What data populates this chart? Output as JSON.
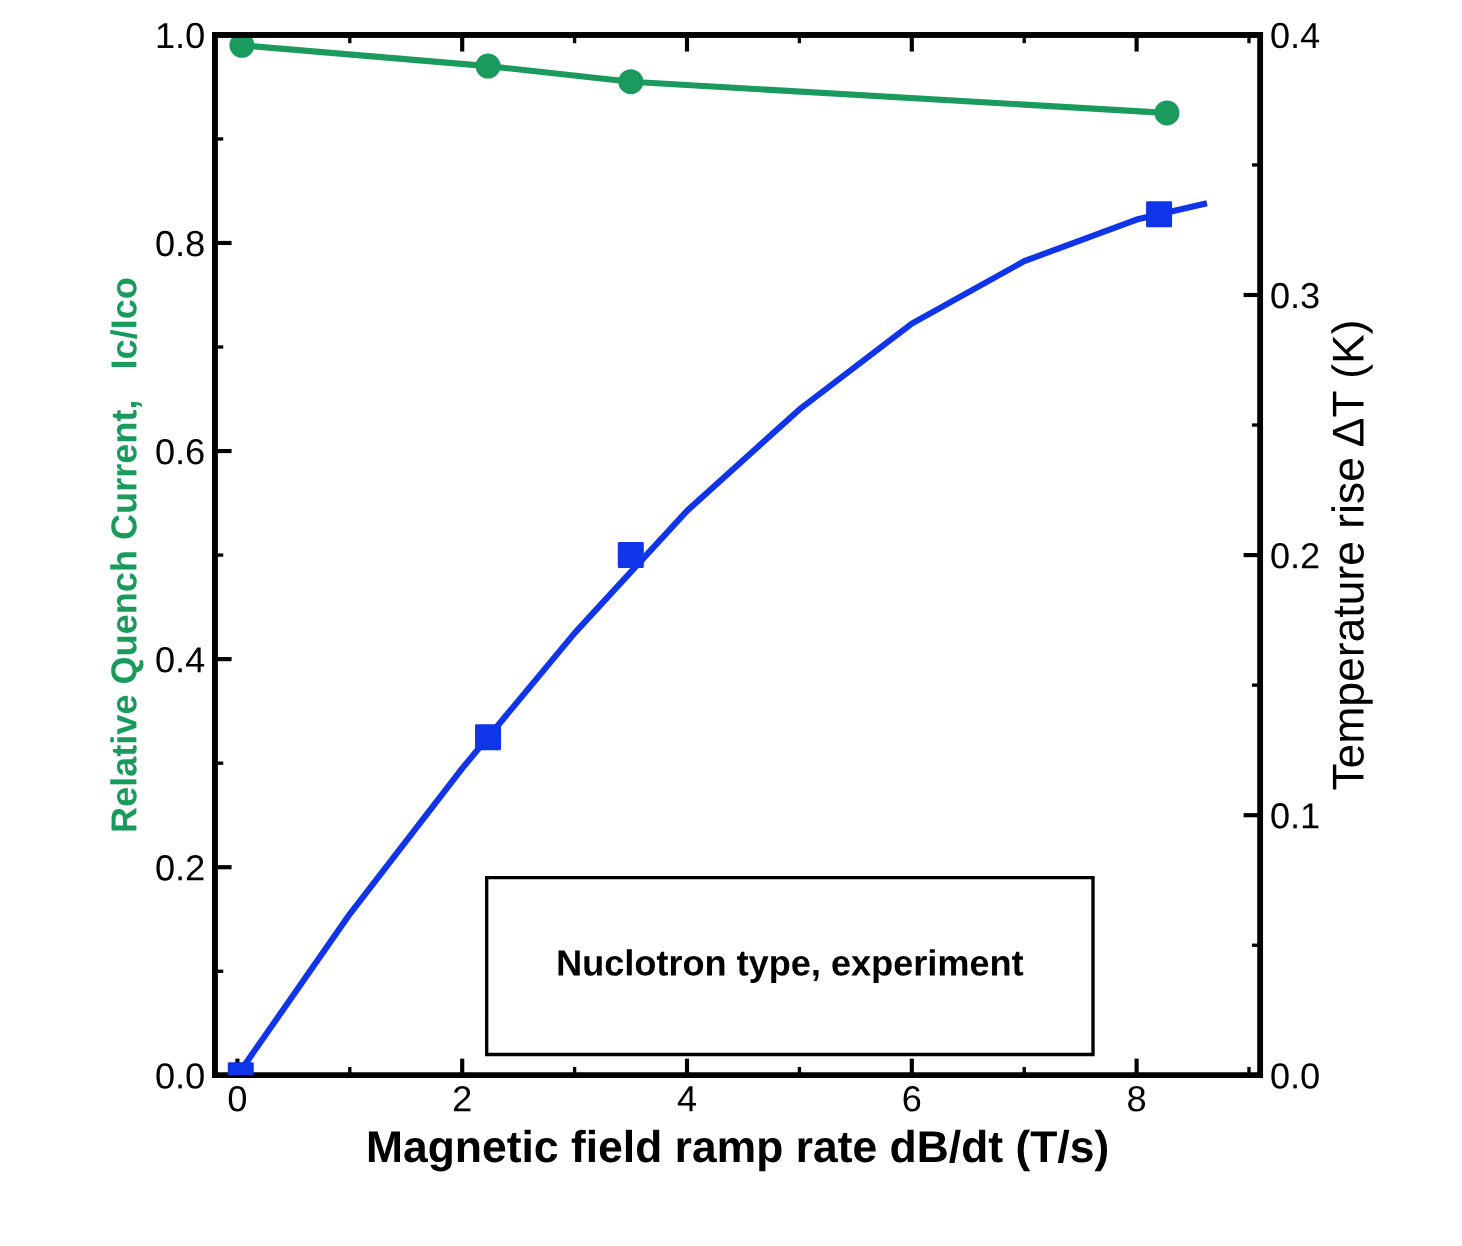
{
  "chart_data": {
    "type": "line",
    "xlabel": "Magnetic field ramp rate dB/dt (T/s)",
    "ylabel": "Relative Quench Current,   Ic/Ico",
    "y2label": "Temperature rise ΔT (K)",
    "xlim": [
      -0.2,
      9.1
    ],
    "xticks": [
      0,
      2,
      4,
      6,
      8
    ],
    "ylim": [
      0,
      1.0
    ],
    "yticks": [
      {
        "value": 0,
        "label": "0.0"
      },
      0.2,
      0.4,
      0.6,
      0.8,
      {
        "value": 1,
        "label": "1.0"
      }
    ],
    "y2lim": [
      0,
      0.4
    ],
    "y2ticks": [
      {
        "value": 0,
        "label": "0.0"
      },
      0.1,
      0.2,
      0.3,
      0.4
    ],
    "annotations": [
      "Nuclotron type, experiment"
    ],
    "series": [
      {
        "color": "#1a9a5c",
        "marker": "circle",
        "x": [
          0.04,
          2.23,
          3.5,
          8.27
        ],
        "values": [
          0.99,
          0.97,
          0.955,
          0.925
        ]
      },
      {
        "type": "scatter",
        "color": "#1035e8",
        "marker": "square",
        "axis": "y2",
        "x": [
          0.03,
          2.23,
          3.5,
          8.2
        ],
        "values": [
          0.0,
          0.13,
          0.2,
          0.331
        ]
      },
      {
        "color": "#1035e8",
        "marker": "none",
        "axis": "y2",
        "x": [
          0,
          1,
          2,
          3,
          4,
          5,
          6,
          7,
          8,
          8.6
        ],
        "values": [
          0,
          0.062,
          0.118,
          0.17,
          0.217,
          0.256,
          0.289,
          0.313,
          0.329,
          0.335
        ]
      }
    ]
  }
}
